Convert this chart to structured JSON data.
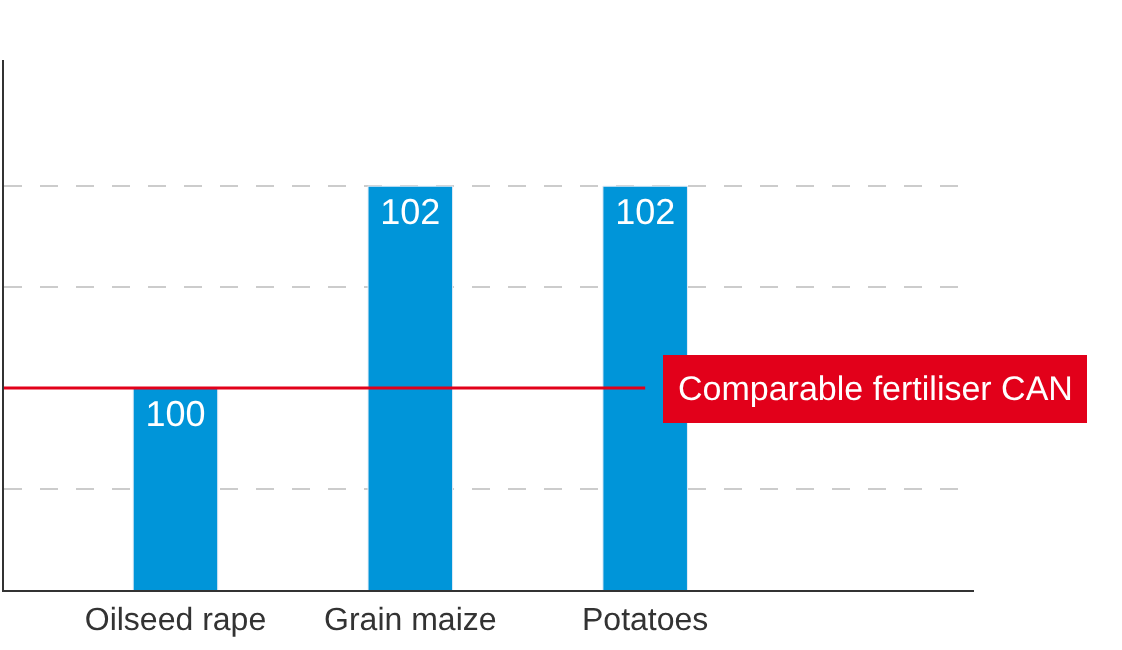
{
  "chart_data": {
    "type": "bar",
    "categories": [
      "Oilseed rape",
      "Grain maize",
      "Potatoes"
    ],
    "values": [
      100,
      102,
      102
    ],
    "color": "#0095d9",
    "data_labels": true,
    "ylim": [
      98,
      103.25
    ],
    "yticks": [
      {
        "value": 99,
        "label": null
      },
      {
        "value": 100,
        "label": null
      },
      {
        "value": 101,
        "label": null
      },
      {
        "value": 102,
        "label": null
      }
    ],
    "grid": "y",
    "tick_labels": "x",
    "ref_lines": [
      {
        "axis": "y",
        "value": 100,
        "label": "Comparable fertiliser CAN",
        "color": "#e2001a"
      }
    ]
  }
}
